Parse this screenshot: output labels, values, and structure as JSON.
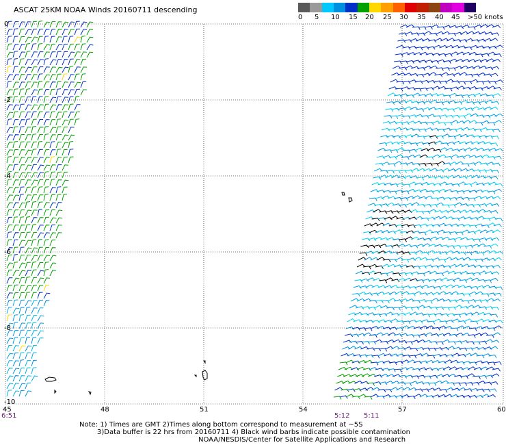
{
  "title": "ASCAT 25KM NOAA Winds 20160711 descending",
  "scale": {
    "colors": [
      "#5a5a5a",
      "#9a9a9a",
      "#00c8ff",
      "#0090e0",
      "#0030c8",
      "#00a000",
      "#ffd800",
      "#ffa000",
      "#ff6000",
      "#e00000",
      "#c02000",
      "#8b4513",
      "#c000c0",
      "#e000e0",
      "#200060"
    ],
    "labels": [
      "0",
      "5",
      "10",
      "15",
      "20",
      "25",
      "30",
      "35",
      "40",
      "45",
      ">50 knots"
    ]
  },
  "axes": {
    "lat_labels": [
      "0",
      "-2",
      "-4",
      "-6",
      "-8",
      "-10"
    ],
    "lon_labels": [
      "45",
      "48",
      "51",
      "54",
      "57",
      "60"
    ]
  },
  "times": [
    "6:51",
    "5:12",
    "5:11"
  ],
  "notes": [
    "Note: 1) Times are GMT 2)Times along bottom correspond to measurement at ~5S",
    "3)Data buffer is 22 hrs from 20160711 4) Black wind barbs indicate possible contamination",
    "NOAA/NESDIS/Center for Satellite Applications and Research"
  ]
}
